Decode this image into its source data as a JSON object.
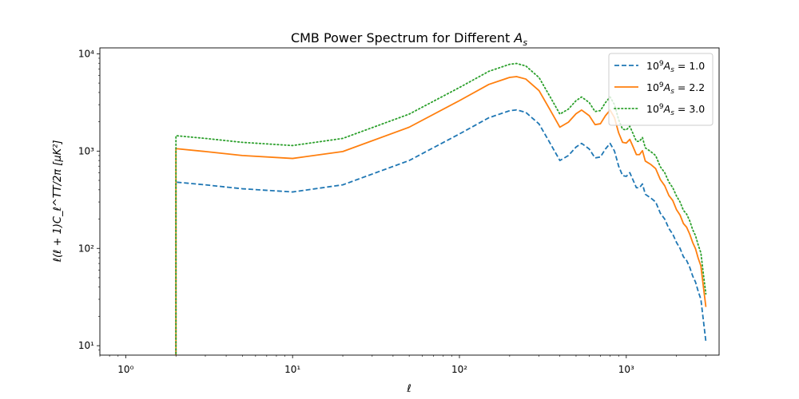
{
  "chart_data": {
    "type": "line",
    "title": "CMB Power Spectrum for Different A_s",
    "title_parts": {
      "main": "CMB Power Spectrum for Different ",
      "var": "A",
      "sub": "s"
    },
    "xlabel": "ℓ",
    "ylabel": "ℓ(ℓ + 1)C_ℓ^TT/2π [μK²]",
    "xscale": "log",
    "yscale": "log",
    "xlim": [
      0.7,
      3600
    ],
    "ylim": [
      8,
      11500
    ],
    "x_major_ticks": [
      1,
      10,
      100,
      1000
    ],
    "x_tick_labels": [
      "10⁰",
      "10¹",
      "10²",
      "10³"
    ],
    "y_major_ticks": [
      10,
      100,
      1000,
      10000
    ],
    "y_tick_labels": [
      "10¹",
      "10²",
      "10³",
      "10⁴"
    ],
    "grid": false,
    "legend_placement": "top-right",
    "series": [
      {
        "name": "10⁹A_s = 1.0",
        "label_prefix": "10",
        "label_exp": "9",
        "label_var": "A",
        "label_sub": "s",
        "label_value": " = 1.0",
        "color": "#1f77b4",
        "dash": "dashed",
        "x": [
          2,
          2,
          3,
          5,
          10,
          20,
          50,
          100,
          150,
          200,
          220,
          250,
          300,
          350,
          400,
          450,
          500,
          540,
          600,
          650,
          700,
          750,
          800,
          850,
          900,
          950,
          1000,
          1050,
          1100,
          1150,
          1200,
          1250,
          1300,
          1400,
          1500,
          1600,
          1700,
          1800,
          1900,
          2000,
          2100,
          2200,
          2300,
          2400,
          2500,
          2600,
          2700,
          2800,
          2900,
          3000
        ],
        "values": [
          7,
          480,
          450,
          410,
          380,
          450,
          800,
          1500,
          2200,
          2600,
          2650,
          2500,
          1900,
          1200,
          800,
          900,
          1100,
          1200,
          1050,
          850,
          870,
          1050,
          1200,
          1000,
          700,
          560,
          550,
          600,
          500,
          420,
          420,
          460,
          360,
          330,
          300,
          230,
          200,
          160,
          140,
          115,
          100,
          82,
          75,
          64,
          52,
          45,
          36,
          30,
          18,
          11
        ]
      },
      {
        "name": "10⁹A_s = 2.2",
        "label_prefix": "10",
        "label_exp": "9",
        "label_var": "A",
        "label_sub": "s",
        "label_value": " = 2.2",
        "color": "#ff7f0e",
        "dash": "solid",
        "x": [
          2,
          2,
          3,
          5,
          10,
          20,
          50,
          100,
          150,
          200,
          220,
          250,
          300,
          350,
          400,
          450,
          500,
          540,
          600,
          650,
          700,
          750,
          800,
          850,
          900,
          950,
          1000,
          1050,
          1100,
          1150,
          1200,
          1250,
          1300,
          1400,
          1500,
          1600,
          1700,
          1800,
          1900,
          2000,
          2100,
          2200,
          2300,
          2400,
          2500,
          2600,
          2700,
          2800,
          2900,
          3000
        ],
        "values": [
          7,
          1060,
          990,
          900,
          840,
          990,
          1760,
          3300,
          4840,
          5720,
          5830,
          5500,
          4180,
          2640,
          1760,
          1980,
          2420,
          2640,
          2310,
          1870,
          1910,
          2310,
          2640,
          2200,
          1540,
          1230,
          1210,
          1320,
          1100,
          920,
          920,
          1010,
          790,
          730,
          660,
          510,
          440,
          350,
          310,
          250,
          220,
          180,
          165,
          140,
          115,
          99,
          79,
          66,
          40,
          25
        ]
      },
      {
        "name": "10⁹A_s = 3.0",
        "label_prefix": "10",
        "label_exp": "9",
        "label_var": "A",
        "label_sub": "s",
        "label_value": " = 3.0",
        "color": "#2ca02c",
        "dash": "dotted",
        "x": [
          2,
          2,
          3,
          5,
          10,
          20,
          50,
          100,
          150,
          200,
          220,
          250,
          300,
          350,
          400,
          450,
          500,
          540,
          600,
          650,
          700,
          750,
          800,
          850,
          900,
          950,
          1000,
          1050,
          1100,
          1150,
          1200,
          1250,
          1300,
          1400,
          1500,
          1600,
          1700,
          1800,
          1900,
          2000,
          2100,
          2200,
          2300,
          2400,
          2500,
          2600,
          2700,
          2800,
          2900,
          3000
        ],
        "values": [
          7,
          1440,
          1350,
          1230,
          1140,
          1350,
          2400,
          4500,
          6600,
          7800,
          7950,
          7500,
          5700,
          3600,
          2400,
          2700,
          3300,
          3600,
          3150,
          2550,
          2610,
          3150,
          3600,
          3000,
          2100,
          1680,
          1650,
          1800,
          1500,
          1260,
          1260,
          1380,
          1080,
          990,
          900,
          690,
          600,
          480,
          420,
          345,
          300,
          246,
          225,
          192,
          156,
          135,
          108,
          90,
          54,
          34
        ]
      }
    ]
  }
}
